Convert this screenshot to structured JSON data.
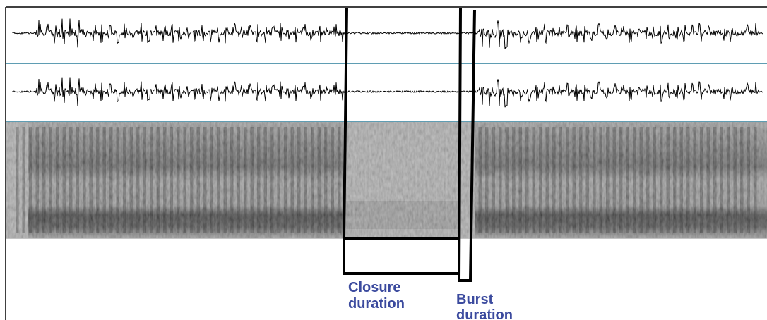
{
  "annotations": [
    {
      "lines": [
        "Closure",
        "duration"
      ]
    },
    {
      "lines": [
        "Burst",
        "duration"
      ]
    }
  ]
}
